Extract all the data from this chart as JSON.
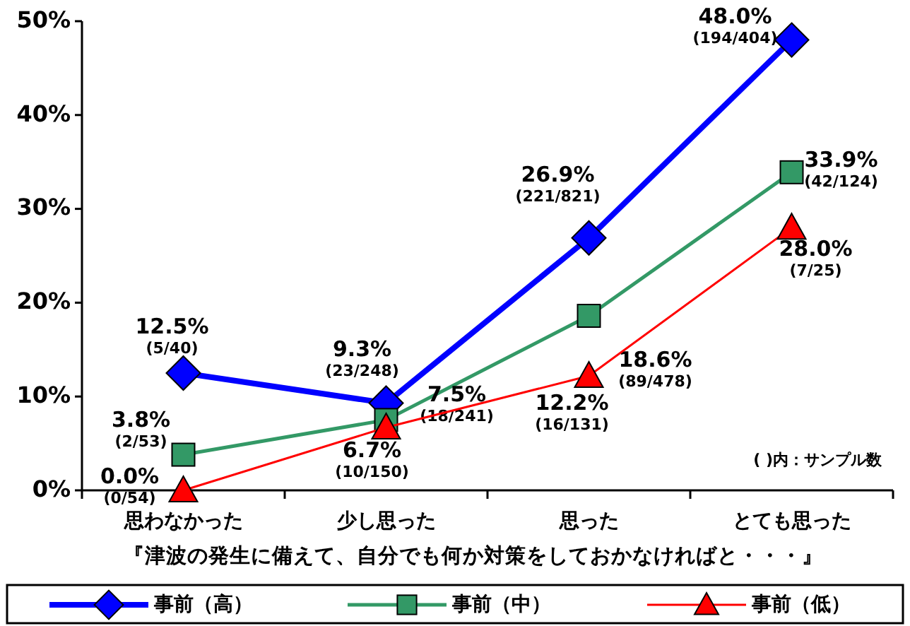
{
  "chart_data": {
    "type": "line",
    "categories": [
      "思わなかった",
      "少し思った",
      "思った",
      "とても思った"
    ],
    "xlabel": "『津波の発生に備えて、自分でも何か対策をしておかなければと・・・』",
    "ylim": [
      0,
      50
    ],
    "yticks": [
      {
        "value": 0,
        "label": "0%"
      },
      {
        "value": 10,
        "label": "10%"
      },
      {
        "value": 20,
        "label": "20%"
      },
      {
        "value": 30,
        "label": "30%"
      },
      {
        "value": 40,
        "label": "40%"
      },
      {
        "value": 50,
        "label": "50%"
      }
    ],
    "legend": "bottom",
    "line_style": "solid",
    "annotations": [
      "( )内：サンプル数"
    ],
    "series": [
      {
        "name": "事前（高）",
        "color": "#0000ff",
        "marker": "diamond",
        "values": [
          12.5,
          9.3,
          26.9,
          48.0
        ],
        "value_labels": [
          "12.5% $_{(5/40)}$",
          "9.3% $_{(23/248)}$",
          "26.9% $_{(221/821)}$",
          "48.0% $_{(194/404)}$"
        ]
      },
      {
        "name": "事前（中）",
        "color": "#339966",
        "marker": "square",
        "values": [
          3.8,
          7.5,
          18.6,
          33.9
        ],
        "value_labels": [
          "3.8% $_{(2/53)}$",
          "7.5% $_{(18/241)}$",
          "18.6% $_{(89/478)}$",
          "33.9% $_{(42/124)}$"
        ]
      },
      {
        "name": "事前（低）",
        "color": "#ff0000",
        "marker": "triangle",
        "values": [
          0.0,
          6.7,
          12.2,
          28.0
        ],
        "value_labels": [
          "0.0% $_{(0/54)}$",
          "6.7% $_{(10/150)}$",
          "12.2% $_{(16/131)}$",
          "28.0% $_{(7/25)}$"
        ]
      }
    ]
  }
}
